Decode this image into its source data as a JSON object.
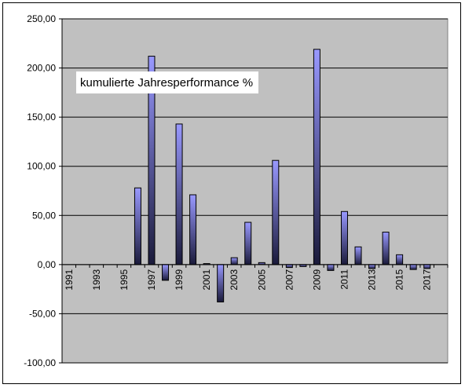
{
  "chart_data": {
    "type": "bar",
    "legend_text": "kumulierte Jahresperformance %",
    "legend_placement": "top-left",
    "ylim": [
      -100,
      250
    ],
    "yticks": [
      "-100,00",
      "-50,00",
      "0,00",
      "50,00",
      "100,00",
      "150,00",
      "200,00",
      "250,00"
    ],
    "ytick_values": [
      -100,
      -50,
      0,
      50,
      100,
      150,
      200,
      250
    ],
    "grid": true,
    "categories": [
      "1991",
      "1992",
      "1993",
      "1994",
      "1995",
      "1996",
      "1997",
      "1998",
      "1999",
      "2000",
      "2001",
      "2002",
      "2003",
      "2004",
      "2005",
      "2006",
      "2007",
      "2008",
      "2009",
      "2010",
      "2011",
      "2012",
      "2013",
      "2014",
      "2015",
      "2016",
      "2017",
      "2018"
    ],
    "xtick_labels": [
      "1991",
      "1993",
      "1995",
      "1997",
      "1999",
      "2001",
      "2003",
      "2005",
      "2007",
      "2009",
      "2011",
      "2013",
      "2015",
      "2017"
    ],
    "values": [
      0,
      0,
      0,
      0,
      0,
      78,
      212,
      -16,
      143,
      71,
      1,
      -38,
      7,
      43,
      2,
      106,
      -3,
      -2,
      219,
      -6,
      54,
      18,
      -4,
      33,
      10,
      -5,
      -4,
      0
    ],
    "colors": {
      "plot_background": "#c0c0c0",
      "bar_light": "#9999ff",
      "bar_dark": "#1a1a3a",
      "grid": "#000000"
    }
  }
}
